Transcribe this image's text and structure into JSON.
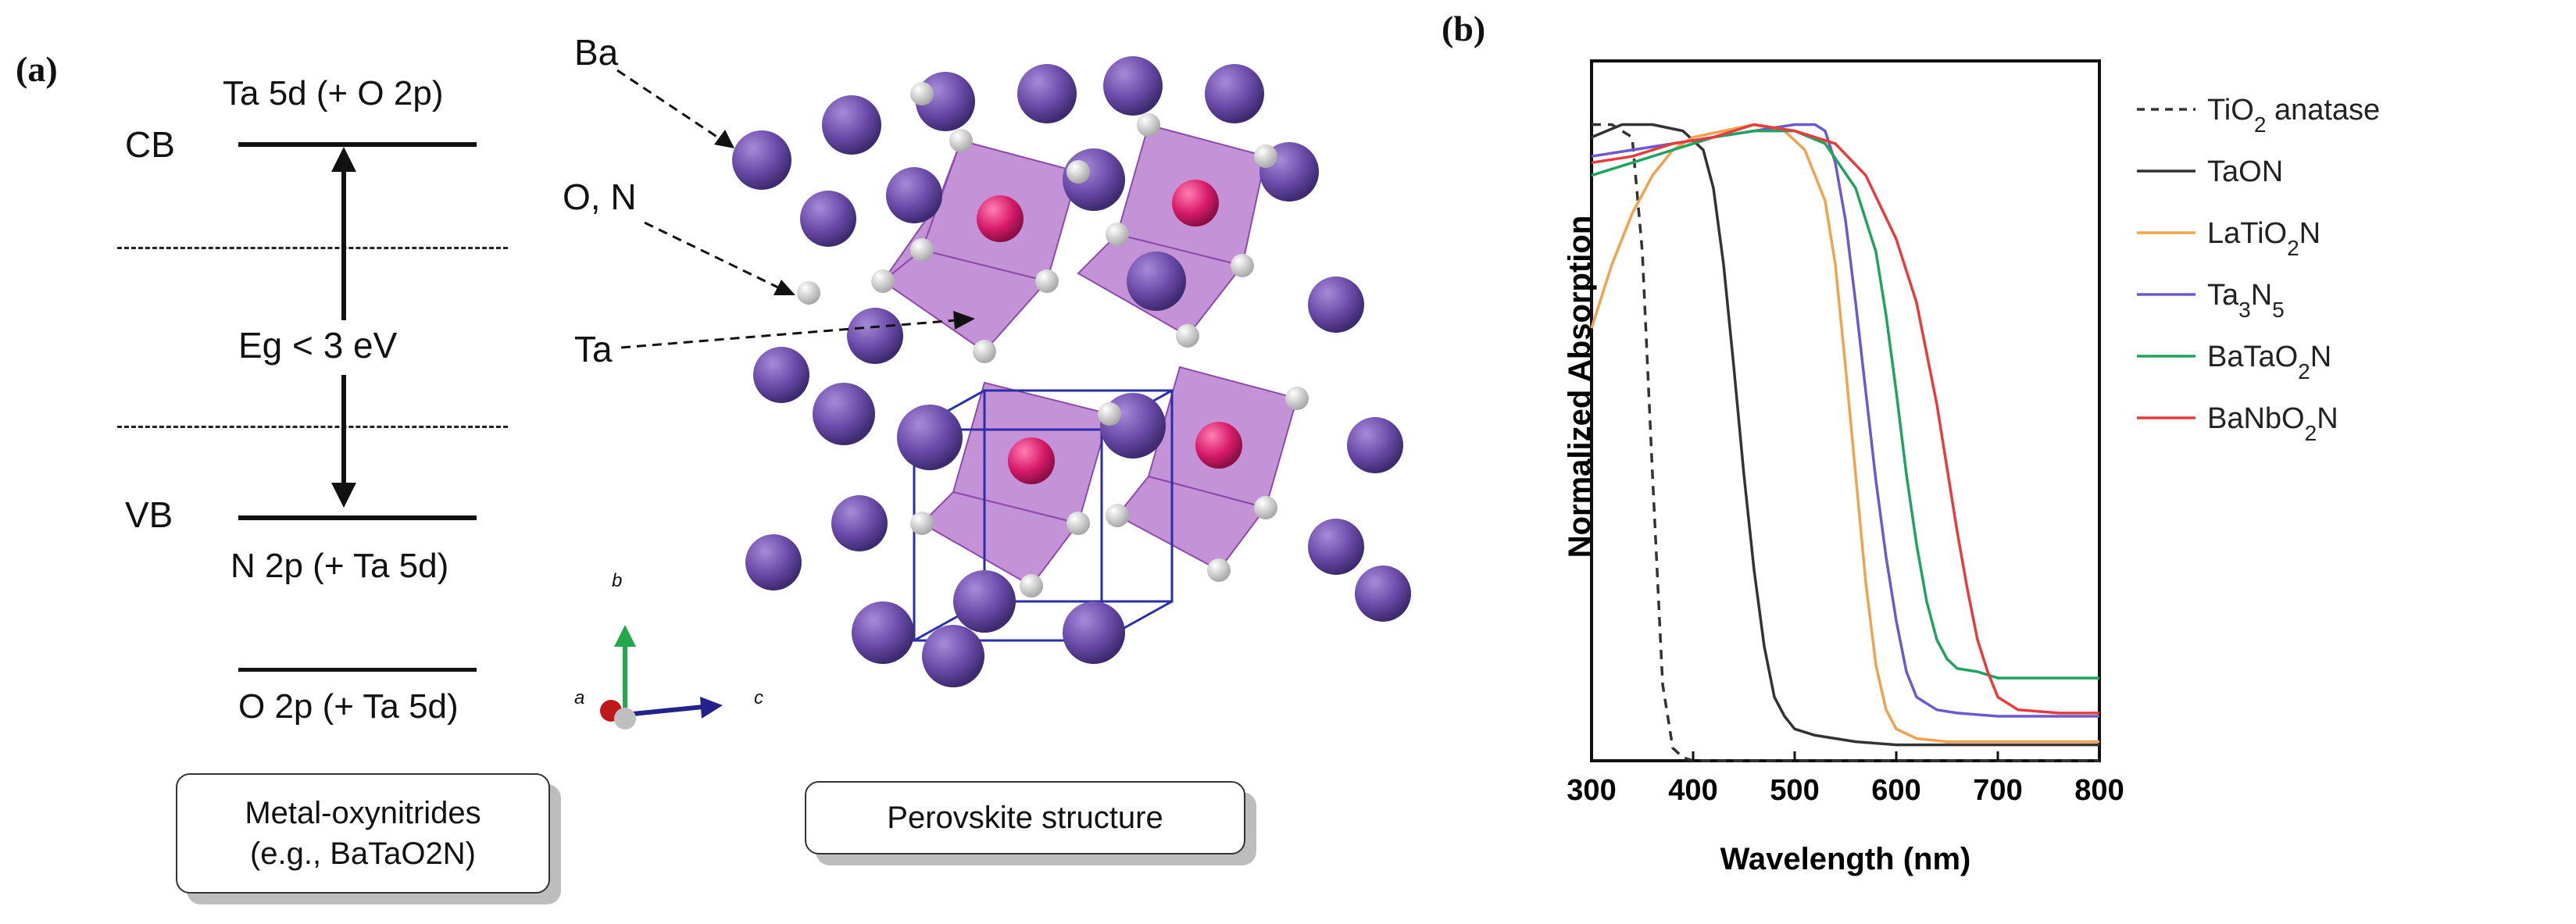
{
  "panel_a": {
    "letter": "(a)",
    "cb_label": "CB",
    "vb_label": "VB",
    "cb_level": "Ta 5d (+ O 2p)",
    "vb_level": "N 2p (+ Ta 5d)",
    "o_level": "O 2p (+ Ta 5d)",
    "gap_label": "Eg < 3 eV",
    "box_left": "Metal-oxynitrides (e.g., BaTaO2N)",
    "box_right": "Perovskite structure",
    "atom_ba": "Ba",
    "atom_on": "O, N",
    "atom_ta": "Ta",
    "axis_a": "a",
    "axis_b": "b",
    "axis_c": "c",
    "colors": {
      "ba": "#6a4aa8",
      "ta": "#d81b6a",
      "octahedron": "#b06ec8",
      "o_n": "#e6e6e6"
    }
  },
  "panel_b": {
    "letter": "(b)"
  },
  "chart_data": {
    "type": "line",
    "xlabel": "Wavelength (nm)",
    "ylabel": "Normalized Absorption",
    "xlim": [
      300,
      800
    ],
    "ylim": [
      0,
      1.1
    ],
    "xticks": [
      300,
      400,
      500,
      600,
      700,
      800
    ],
    "grid": false,
    "legend_position": "right",
    "series": [
      {
        "name": "TiO2 anatase",
        "color": "#333333",
        "dash": true,
        "x": [
          300,
          320,
          340,
          350,
          360,
          370,
          380,
          390,
          400,
          800
        ],
        "y": [
          1.0,
          1.0,
          0.98,
          0.8,
          0.45,
          0.12,
          0.02,
          0.005,
          0.0,
          0.0
        ]
      },
      {
        "name": "TaON",
        "color": "#333333",
        "dash": false,
        "x": [
          300,
          330,
          360,
          390,
          410,
          420,
          430,
          440,
          450,
          460,
          470,
          480,
          490,
          500,
          520,
          560,
          600,
          700,
          800
        ],
        "y": [
          0.98,
          1.0,
          1.0,
          0.99,
          0.96,
          0.9,
          0.78,
          0.62,
          0.45,
          0.3,
          0.18,
          0.1,
          0.07,
          0.05,
          0.04,
          0.03,
          0.025,
          0.025,
          0.025
        ]
      },
      {
        "name": "LaTiO2N",
        "color": "#f2a24f",
        "dash": false,
        "x": [
          300,
          320,
          340,
          360,
          380,
          400,
          430,
          460,
          490,
          510,
          530,
          540,
          550,
          560,
          570,
          580,
          590,
          600,
          620,
          650,
          700,
          800
        ],
        "y": [
          0.68,
          0.78,
          0.86,
          0.92,
          0.96,
          0.98,
          0.99,
          1.0,
          0.99,
          0.96,
          0.88,
          0.78,
          0.62,
          0.45,
          0.28,
          0.15,
          0.08,
          0.05,
          0.035,
          0.03,
          0.03,
          0.03
        ]
      },
      {
        "name": "Ta3N5",
        "color": "#6a5acd",
        "dash": false,
        "x": [
          300,
          340,
          380,
          420,
          460,
          500,
          520,
          530,
          540,
          550,
          560,
          570,
          580,
          590,
          600,
          610,
          620,
          640,
          660,
          700,
          800
        ],
        "y": [
          0.95,
          0.96,
          0.97,
          0.98,
          0.99,
          1.0,
          1.0,
          0.99,
          0.94,
          0.85,
          0.72,
          0.58,
          0.44,
          0.32,
          0.22,
          0.14,
          0.1,
          0.08,
          0.075,
          0.07,
          0.07
        ]
      },
      {
        "name": "BaTaO2N",
        "color": "#1fa45f",
        "dash": false,
        "x": [
          300,
          340,
          380,
          420,
          460,
          500,
          530,
          560,
          580,
          590,
          600,
          610,
          620,
          630,
          640,
          650,
          660,
          680,
          700,
          720,
          800
        ],
        "y": [
          0.92,
          0.94,
          0.96,
          0.98,
          0.99,
          0.99,
          0.97,
          0.9,
          0.8,
          0.7,
          0.58,
          0.45,
          0.34,
          0.25,
          0.19,
          0.16,
          0.145,
          0.14,
          0.13,
          0.13,
          0.13
        ]
      },
      {
        "name": "BaNbO2N",
        "color": "#e83b3b",
        "dash": false,
        "x": [
          300,
          340,
          380,
          420,
          460,
          500,
          540,
          570,
          600,
          620,
          640,
          650,
          660,
          670,
          680,
          690,
          700,
          720,
          760,
          800
        ],
        "y": [
          0.94,
          0.95,
          0.97,
          0.98,
          1.0,
          0.99,
          0.97,
          0.92,
          0.82,
          0.72,
          0.56,
          0.46,
          0.36,
          0.27,
          0.19,
          0.14,
          0.1,
          0.08,
          0.075,
          0.075
        ]
      }
    ]
  }
}
